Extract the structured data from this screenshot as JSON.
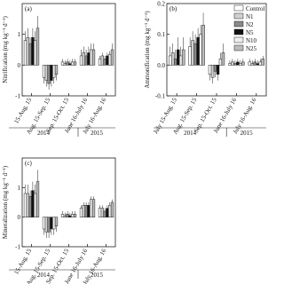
{
  "chart_data": [
    {
      "type": "bar",
      "panel_label": "(a)",
      "y_label": "Nitrification (mg kg⁻¹ d⁻¹)",
      "categories": [
        "15-Aug. 15",
        "Aug. 15-Sep. 15",
        "Sep. 15-Oct. 15",
        "June 16-July 16",
        "July 16-Aug. 16"
      ],
      "x_groups": [
        "2014",
        "2015"
      ],
      "ylim": [
        -1,
        2
      ],
      "yticks": [
        -1,
        0,
        1
      ],
      "series": [
        {
          "name": "Control",
          "color": "#ffffff",
          "values": [
            0.8,
            -0.4,
            0.1,
            0.3,
            0.2
          ],
          "errors": [
            0.3,
            0.2,
            0.1,
            0.2,
            0.1
          ]
        },
        {
          "name": "N1",
          "color": "#d0d0d0",
          "values": [
            0.9,
            -0.5,
            0.05,
            0.4,
            0.3
          ],
          "errors": [
            0.3,
            0.2,
            0.1,
            0.2,
            0.1
          ]
        },
        {
          "name": "N2",
          "color": "#888888",
          "values": [
            0.7,
            -0.6,
            0.1,
            0.3,
            0.2
          ],
          "errors": [
            0.2,
            0.2,
            0.1,
            0.2,
            0.1
          ]
        },
        {
          "name": "N5",
          "color": "#111111",
          "values": [
            0.9,
            -0.5,
            0.05,
            0.4,
            0.3
          ],
          "errors": [
            0.3,
            0.2,
            0.1,
            0.2,
            0.1
          ]
        },
        {
          "name": "N10",
          "color": "#eeeeee",
          "values": [
            0.8,
            -0.4,
            0.1,
            0.5,
            0.35
          ],
          "errors": [
            0.3,
            0.2,
            0.1,
            0.2,
            0.1
          ]
        },
        {
          "name": "N25",
          "color": "#bbbbbb",
          "values": [
            1.2,
            -0.3,
            0.1,
            0.5,
            0.5
          ],
          "errors": [
            0.4,
            0.2,
            0.1,
            0.2,
            0.2
          ]
        }
      ]
    },
    {
      "type": "bar",
      "panel_label": "(b)",
      "y_label": "Ammonification (mg kg⁻¹ d⁻¹)",
      "categories": [
        "July 15-Aug. 15",
        "Aug. 15-Sep. 15",
        "Sep. 15-Oct. 15",
        "June 16-July 16",
        "July 16-Aug. 16"
      ],
      "x_groups": [
        "2014",
        "2015"
      ],
      "ylim": [
        -0.1,
        0.2
      ],
      "yticks": [
        -0.1,
        {
          "value": 0,
          "label": "0.0"
        },
        0.1,
        0.2
      ],
      "legend": "upper right",
      "series": [
        {
          "name": "Control",
          "color": "#ffffff",
          "values": [
            0.03,
            0.06,
            -0.03,
            0.005,
            0.01
          ],
          "errors": [
            0.03,
            0.03,
            0.02,
            0.01,
            0.01
          ]
        },
        {
          "name": "N1",
          "color": "#d0d0d0",
          "values": [
            0.04,
            0.08,
            -0.04,
            0.01,
            0.005
          ],
          "errors": [
            0.03,
            0.03,
            0.02,
            0.01,
            0.01
          ]
        },
        {
          "name": "N2",
          "color": "#888888",
          "values": [
            0.02,
            0.07,
            -0.02,
            0.005,
            0.01
          ],
          "errors": [
            0.03,
            0.03,
            0.02,
            0.01,
            0.01
          ]
        },
        {
          "name": "N5",
          "color": "#111111",
          "values": [
            0.05,
            0.09,
            -0.03,
            0.01,
            0.005
          ],
          "errors": [
            0.04,
            0.03,
            0.02,
            0.01,
            0.01
          ]
        },
        {
          "name": "N10",
          "color": "#eeeeee",
          "values": [
            0.03,
            0.1,
            0.02,
            0.005,
            0.01
          ],
          "errors": [
            0.03,
            0.03,
            0.02,
            0.01,
            0.01
          ]
        },
        {
          "name": "N25",
          "color": "#bbbbbb",
          "values": [
            0.05,
            0.13,
            0.04,
            0.01,
            0.02
          ],
          "errors": [
            0.04,
            0.04,
            0.03,
            0.01,
            0.01
          ]
        }
      ]
    },
    {
      "type": "bar",
      "panel_label": "(c)",
      "y_label": "Mineralization (mg kg⁻¹ d⁻¹)",
      "categories": [
        "15-Aug. 15",
        "Aug. 15-Sep. 15",
        "Sep. 15-Oct. 15",
        "June 16-July 16",
        "July 16-Aug. 16"
      ],
      "x_groups": [
        "2014",
        "2015"
      ],
      "ylim": [
        -1,
        2
      ],
      "yticks": [
        -1,
        0,
        1
      ],
      "series": [
        {
          "name": "Control",
          "color": "#ffffff",
          "values": [
            0.8,
            -0.4,
            0.1,
            0.3,
            0.3
          ],
          "errors": [
            0.3,
            0.2,
            0.1,
            0.1,
            0.1
          ]
        },
        {
          "name": "N1",
          "color": "#d0d0d0",
          "values": [
            0.8,
            -0.5,
            0.05,
            0.4,
            0.3
          ],
          "errors": [
            0.3,
            0.2,
            0.1,
            0.1,
            0.1
          ]
        },
        {
          "name": "N2",
          "color": "#888888",
          "values": [
            0.7,
            -0.5,
            0.1,
            0.4,
            0.2
          ],
          "errors": [
            0.2,
            0.2,
            0.1,
            0.1,
            0.1
          ]
        },
        {
          "name": "N5",
          "color": "#111111",
          "values": [
            0.9,
            -0.4,
            0.05,
            0.4,
            0.3
          ],
          "errors": [
            0.3,
            0.2,
            0.1,
            0.1,
            0.1
          ]
        },
        {
          "name": "N10",
          "color": "#eeeeee",
          "values": [
            0.8,
            -0.4,
            0.1,
            0.6,
            0.4
          ],
          "errors": [
            0.3,
            0.2,
            0.1,
            0.1,
            0.1
          ]
        },
        {
          "name": "N25",
          "color": "#bbbbbb",
          "values": [
            1.2,
            -0.3,
            0.1,
            0.6,
            0.5
          ],
          "errors": [
            0.4,
            0.2,
            0.1,
            0.1,
            0.1
          ]
        }
      ]
    }
  ]
}
